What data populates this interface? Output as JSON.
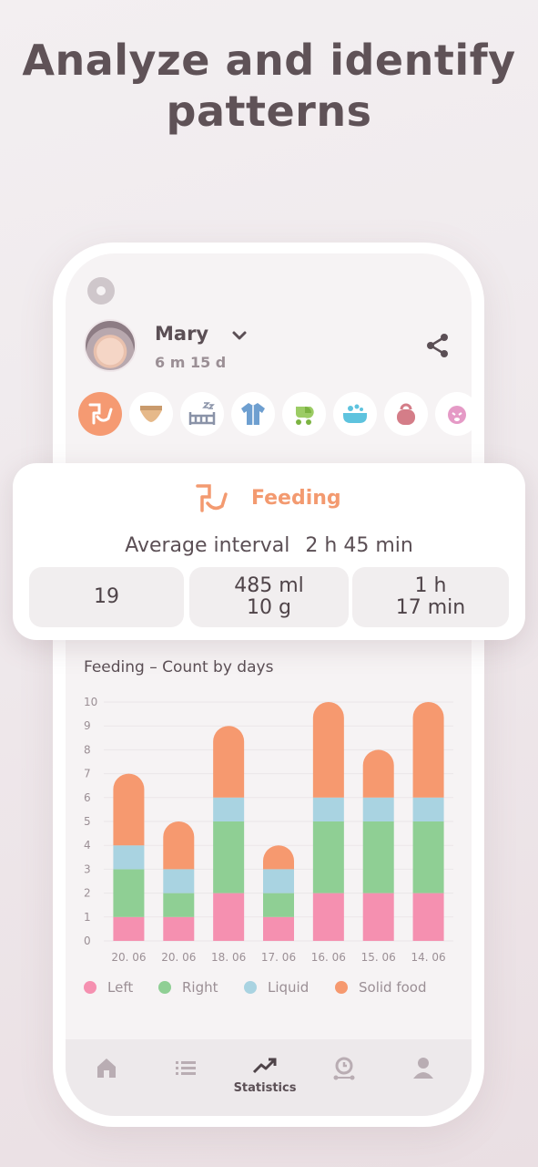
{
  "headline": {
    "line1": "Analyze and identify",
    "line2": "patterns"
  },
  "profile": {
    "name": "Mary",
    "age": "6 m 15 d"
  },
  "categories": [
    {
      "icon": "feeding-icon",
      "active": true
    },
    {
      "icon": "diaper-icon"
    },
    {
      "icon": "sleep-icon"
    },
    {
      "icon": "clothes-icon"
    },
    {
      "icon": "stroller-icon"
    },
    {
      "icon": "bath-icon"
    },
    {
      "icon": "weight-icon"
    },
    {
      "icon": "crying-icon"
    }
  ],
  "summary": {
    "title": "Feeding",
    "avg_label": "Average interval",
    "avg_value": "2 h 45 min",
    "stats": [
      {
        "lines": [
          "19"
        ]
      },
      {
        "lines": [
          "485 ml",
          "10 g"
        ]
      },
      {
        "lines": [
          "1 h",
          "17 min"
        ]
      }
    ]
  },
  "chart_title": "Feeding – Count by days",
  "chart_data": {
    "type": "bar",
    "stacked": true,
    "categories": [
      "20. 06",
      "20. 06",
      "18. 06",
      "17. 06",
      "16. 06",
      "15. 06",
      "14. 06"
    ],
    "series": [
      {
        "name": "Left",
        "color": "#f590b0",
        "values": [
          1,
          1,
          2,
          1,
          2,
          2,
          2
        ]
      },
      {
        "name": "Right",
        "color": "#8fcf94",
        "values": [
          2,
          1,
          3,
          1,
          3,
          3,
          3
        ]
      },
      {
        "name": "Liquid",
        "color": "#a9d3e1",
        "values": [
          1,
          1,
          1,
          1,
          1,
          1,
          1
        ]
      },
      {
        "name": "Solid food",
        "color": "#f6996f",
        "values": [
          3,
          2,
          3,
          1,
          4,
          2,
          4
        ]
      }
    ],
    "y_ticks": [
      "0",
      "1",
      "2",
      "3",
      "4",
      "5",
      "6",
      "7",
      "8",
      "9",
      "10"
    ],
    "ylim": [
      0,
      10
    ],
    "grid": true,
    "legend": "bottom"
  },
  "tabs": [
    {
      "icon": "home-icon",
      "label": ""
    },
    {
      "icon": "list-icon",
      "label": ""
    },
    {
      "icon": "statistics-icon",
      "label": "Statistics",
      "active": true
    },
    {
      "icon": "timer-icon",
      "label": ""
    },
    {
      "icon": "profile-icon",
      "label": ""
    }
  ]
}
